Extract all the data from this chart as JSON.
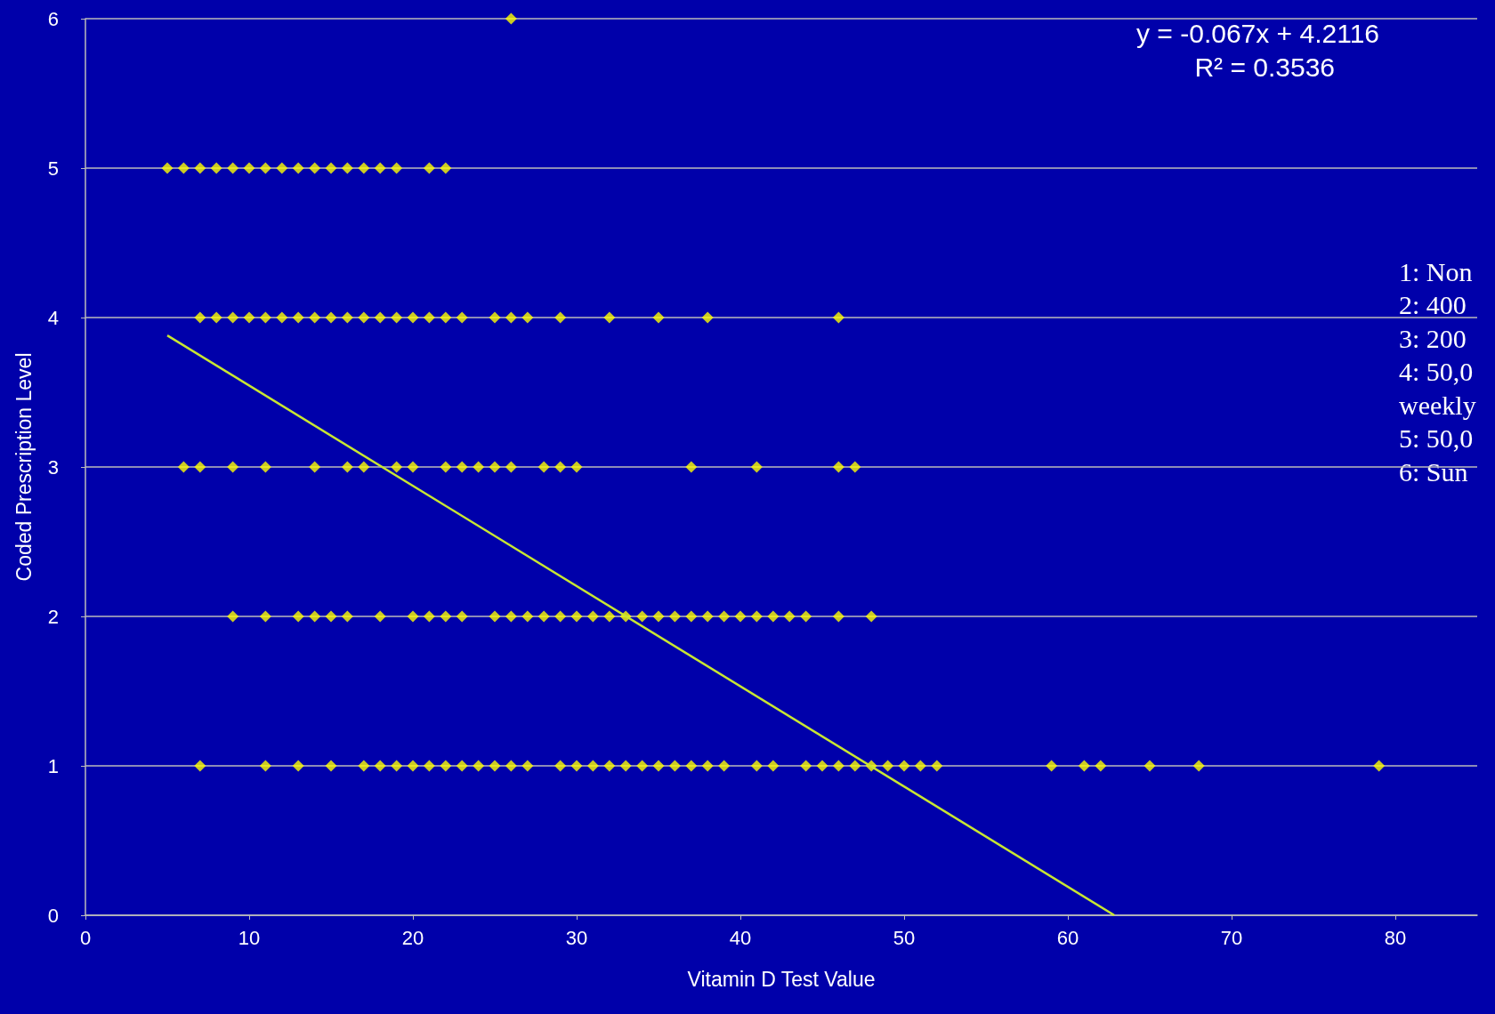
{
  "chart_data": {
    "type": "scatter",
    "xlabel": "Vitamin D Test Value",
    "ylabel": "Coded Prescription Level",
    "xlim": [
      0,
      85
    ],
    "xticks": [
      0,
      10,
      20,
      30,
      40,
      50,
      60,
      70,
      80
    ],
    "ylim": [
      0,
      6
    ],
    "yticks": [
      0,
      1,
      2,
      3,
      4,
      5,
      6
    ],
    "grid": "y",
    "marker": "diamond",
    "series": [
      {
        "color": "#ffff00",
        "x": [
          26,
          5,
          6,
          7,
          8,
          9,
          10,
          11,
          12,
          13,
          14,
          15,
          16,
          17,
          18,
          19,
          21,
          22,
          7,
          8,
          9,
          10,
          11,
          12,
          13,
          14,
          15,
          16,
          17,
          18,
          19,
          20,
          21,
          22,
          23,
          25,
          26,
          27,
          29,
          32,
          35,
          38,
          46,
          6,
          7,
          9,
          11,
          14,
          16,
          17,
          19,
          20,
          22,
          23,
          24,
          25,
          26,
          28,
          29,
          30,
          37,
          41,
          46,
          47,
          9,
          11,
          13,
          14,
          15,
          16,
          18,
          20,
          21,
          22,
          23,
          25,
          26,
          27,
          28,
          29,
          30,
          31,
          32,
          33,
          34,
          35,
          36,
          37,
          38,
          39,
          40,
          41,
          42,
          43,
          44,
          46,
          48,
          7,
          11,
          13,
          15,
          17,
          18,
          19,
          20,
          21,
          22,
          23,
          24,
          25,
          26,
          27,
          29,
          30,
          31,
          32,
          33,
          34,
          35,
          36,
          37,
          38,
          39,
          41,
          42,
          44,
          45,
          46,
          47,
          48,
          49,
          50,
          51,
          52,
          59,
          61,
          62,
          65,
          68,
          79
        ],
        "values": [
          6,
          5,
          5,
          5,
          5,
          5,
          5,
          5,
          5,
          5,
          5,
          5,
          5,
          5,
          5,
          5,
          5,
          5,
          4,
          4,
          4,
          4,
          4,
          4,
          4,
          4,
          4,
          4,
          4,
          4,
          4,
          4,
          4,
          4,
          4,
          4,
          4,
          4,
          4,
          4,
          4,
          4,
          4,
          3,
          3,
          3,
          3,
          3,
          3,
          3,
          3,
          3,
          3,
          3,
          3,
          3,
          3,
          3,
          3,
          3,
          3,
          3,
          3,
          3,
          2,
          2,
          2,
          2,
          2,
          2,
          2,
          2,
          2,
          2,
          2,
          2,
          2,
          2,
          2,
          2,
          2,
          2,
          2,
          2,
          2,
          2,
          2,
          2,
          2,
          2,
          2,
          2,
          2,
          2,
          2,
          2,
          2,
          1,
          1,
          1,
          1,
          1,
          1,
          1,
          1,
          1,
          1,
          1,
          1,
          1,
          1,
          1,
          1,
          1,
          1,
          1,
          1,
          1,
          1,
          1,
          1,
          1,
          1,
          1,
          1,
          1,
          1,
          1,
          1,
          1,
          1,
          1,
          1,
          1,
          1,
          1,
          1,
          1,
          1,
          1
        ]
      },
      {
        "type": "line",
        "color": "#c8e632",
        "marker": "none",
        "x": [
          5,
          62.84
        ],
        "values": [
          3.88,
          0
        ]
      }
    ],
    "annotations": [
      "y = -0.067x + 4.2116",
      "R² = 0.3536",
      "1: Non",
      "2: 400",
      "3: 200",
      "4: 50,0",
      "weekly",
      "5: 50,0",
      "6: Sun"
    ]
  }
}
